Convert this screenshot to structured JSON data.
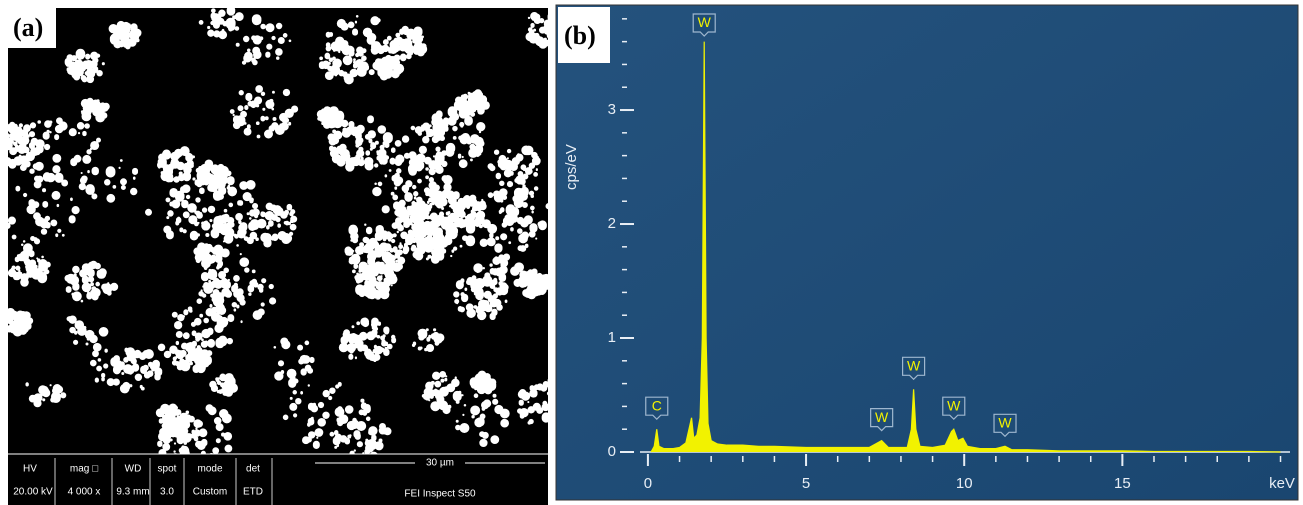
{
  "panels": {
    "a": "(a)",
    "b": "(b)"
  },
  "sem_info": {
    "headers": [
      "HV",
      "mag □",
      "WD",
      "spot",
      "mode",
      "det"
    ],
    "values": [
      "20.00 kV",
      "4 000 x",
      "9.3 mm",
      "3.0",
      "Custom",
      "ETD"
    ],
    "scale_bar": "30 µm",
    "instrument": "FEI Inspect S50"
  },
  "chart_data": {
    "type": "area",
    "color": "#f2f200",
    "x": [
      0.1,
      0.2,
      0.28,
      0.35,
      0.5,
      0.8,
      1.0,
      1.2,
      1.38,
      1.45,
      1.55,
      1.65,
      1.72,
      1.78,
      1.84,
      1.9,
      2.0,
      2.2,
      2.5,
      3.0,
      3.5,
      4.0,
      5.0,
      6.0,
      7.0,
      7.39,
      7.6,
      8.2,
      8.33,
      8.4,
      8.47,
      8.6,
      9.0,
      9.4,
      9.6,
      9.67,
      9.8,
      9.96,
      10.1,
      10.5,
      11.0,
      11.29,
      11.5,
      12.0,
      13.0,
      14.0,
      15.0,
      16.0,
      17.0,
      18.0,
      19.0,
      20.0
    ],
    "values": [
      0.0,
      0.05,
      0.2,
      0.05,
      0.03,
      0.03,
      0.04,
      0.08,
      0.3,
      0.12,
      0.15,
      0.3,
      1.0,
      3.6,
      1.0,
      0.25,
      0.1,
      0.07,
      0.06,
      0.06,
      0.05,
      0.05,
      0.04,
      0.04,
      0.04,
      0.1,
      0.04,
      0.04,
      0.2,
      0.55,
      0.2,
      0.05,
      0.04,
      0.06,
      0.18,
      0.2,
      0.1,
      0.12,
      0.05,
      0.03,
      0.03,
      0.05,
      0.02,
      0.02,
      0.01,
      0.01,
      0.01,
      0.005,
      0.005,
      0.005,
      0.005,
      0.0
    ],
    "xlim": [
      -0.25,
      20.3
    ],
    "ylim": [
      0,
      3.86
    ],
    "xticks": [
      0,
      5,
      10,
      15
    ],
    "yticks": [
      0,
      1,
      2,
      3
    ],
    "x_label": "keV",
    "y_label": "cps/eV",
    "annotations": [
      {
        "text": "C",
        "x": 0.28
      },
      {
        "text": "W",
        "x": 1.78
      },
      {
        "text": "W",
        "x": 7.39
      },
      {
        "text": "W",
        "x": 8.4
      },
      {
        "text": "W",
        "x": 9.67
      },
      {
        "text": "W",
        "x": 11.29
      }
    ]
  }
}
